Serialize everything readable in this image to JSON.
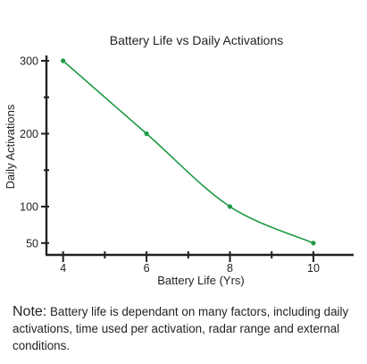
{
  "chart_data": {
    "type": "line",
    "title": "Battery Life vs Daily Activations",
    "xlabel": "Battery Life (Yrs)",
    "ylabel": "Daily Activations",
    "x_ticks": [
      4,
      6,
      8,
      10
    ],
    "y_ticks": [
      50,
      100,
      200,
      300
    ],
    "xlim": [
      3.6,
      10.9
    ],
    "ylim": [
      35,
      300
    ],
    "grid": false,
    "legend": "none",
    "series": [
      {
        "x": [
          4,
          6,
          8,
          10
        ],
        "y": [
          300,
          200,
          100,
          50
        ],
        "color": "#1e9a46",
        "smooth": true
      }
    ]
  },
  "note": {
    "label": "Note:",
    "text": "Battery life is dependant on many factors, including daily activations, time used per activation, radar range and external conditions."
  }
}
